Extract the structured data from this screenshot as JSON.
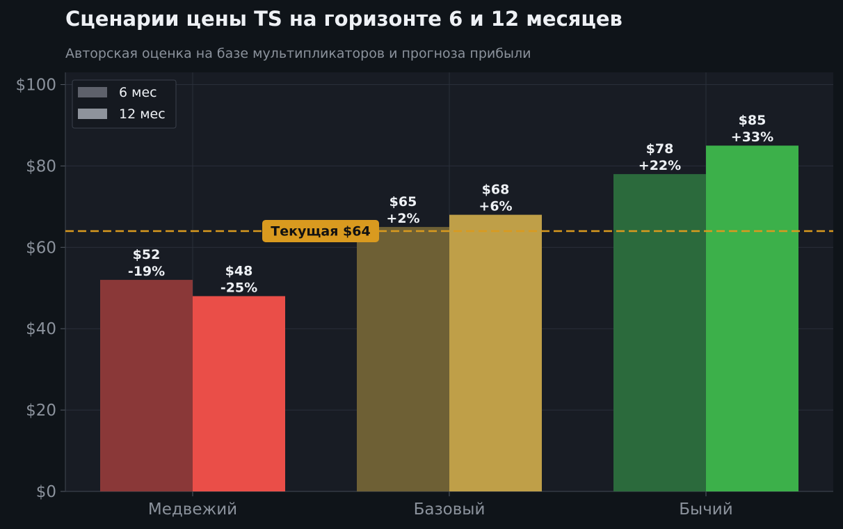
{
  "title": "Сценарии цены TS на горизонте 6 и 12 месяцев",
  "subtitle": "Авторская оценка на базе мультипликаторов и прогноза прибыли",
  "colors": {
    "background": "#0f1419",
    "plot_background": "#181c24",
    "grid": "#2a2f3a",
    "reference_line": "#d99a1f",
    "bear_6": "#8a3838",
    "bear_12": "#ea4e48",
    "base_6": "#6e6035",
    "base_12": "#bf9f48",
    "bull_6": "#2b6a3c",
    "bull_12": "#3cb04a",
    "legend_6": "#5e616b",
    "legend_12": "#8e939c"
  },
  "chart_data": {
    "type": "bar",
    "categories": [
      "Медвежий",
      "Базовый",
      "Бычий"
    ],
    "series": [
      {
        "name": "6 мес",
        "values": [
          52,
          65,
          78
        ],
        "labels": [
          "$52\n-19%",
          "$65\n+2%",
          "$78\n+22%"
        ]
      },
      {
        "name": "12 мес",
        "values": [
          48,
          68,
          85
        ],
        "labels": [
          "$48\n-25%",
          "$68\n+6%",
          "$85\n+33%"
        ]
      }
    ],
    "ylim": [
      0,
      103
    ],
    "yticks": [
      0,
      20,
      40,
      60,
      80,
      100
    ],
    "ytick_labels": [
      "$0",
      "$20",
      "$40",
      "$60",
      "$80",
      "$100"
    ],
    "reference_line": {
      "value": 64,
      "label": "Текущая $64"
    },
    "legend_position": "top-left",
    "grid": true
  }
}
